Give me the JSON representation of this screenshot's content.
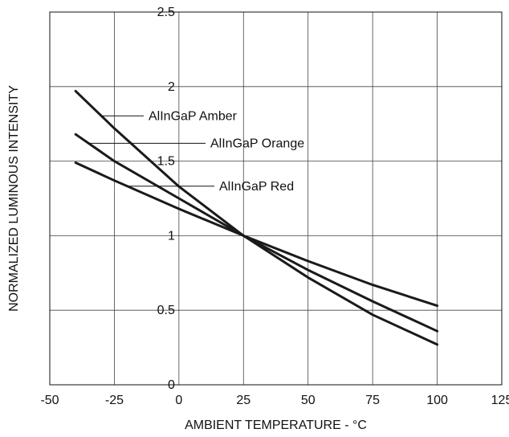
{
  "chart_data": {
    "type": "line",
    "title": "",
    "xlabel": "AMBIENT TEMPERATURE - °C",
    "ylabel": "NORMALIZED LUMINOUS INTENSITY",
    "xlim": [
      -50,
      125
    ],
    "ylim": [
      0,
      2.5
    ],
    "xticks": [
      -50,
      -25,
      0,
      25,
      50,
      75,
      100,
      125
    ],
    "yticks": [
      0,
      0.5,
      1,
      1.5,
      2,
      2.5
    ],
    "x_tick_labels": [
      "-50",
      "-25",
      "0",
      "25",
      "50",
      "75",
      "100",
      "125"
    ],
    "y_tick_labels": [
      "0",
      "0.5",
      "1",
      "1.5",
      "2",
      "2.5"
    ],
    "grid": true,
    "legend": "none",
    "line_color": "#1a1a1a",
    "series": [
      {
        "name": "AlInGaP Amber",
        "x": [
          -40,
          -25,
          0,
          25,
          50,
          75,
          100
        ],
        "y": [
          1.97,
          1.72,
          1.33,
          1.0,
          0.72,
          0.47,
          0.27
        ]
      },
      {
        "name": "AlInGaP Orange",
        "x": [
          -40,
          -25,
          0,
          25,
          50,
          75,
          100
        ],
        "y": [
          1.68,
          1.5,
          1.25,
          1.0,
          0.77,
          0.56,
          0.36
        ]
      },
      {
        "name": "AlInGaP Red",
        "x": [
          -40,
          -25,
          0,
          25,
          50,
          75,
          100
        ],
        "y": [
          1.49,
          1.37,
          1.18,
          1.0,
          0.83,
          0.67,
          0.53
        ]
      }
    ],
    "annotations": [
      {
        "text": "AlInGaP Amber",
        "series": 0,
        "x": -30
      },
      {
        "text": "AlInGaP Orange",
        "series": 1,
        "x": -35
      },
      {
        "text": "AlInGaP Red",
        "series": 2,
        "x": -20
      }
    ]
  }
}
